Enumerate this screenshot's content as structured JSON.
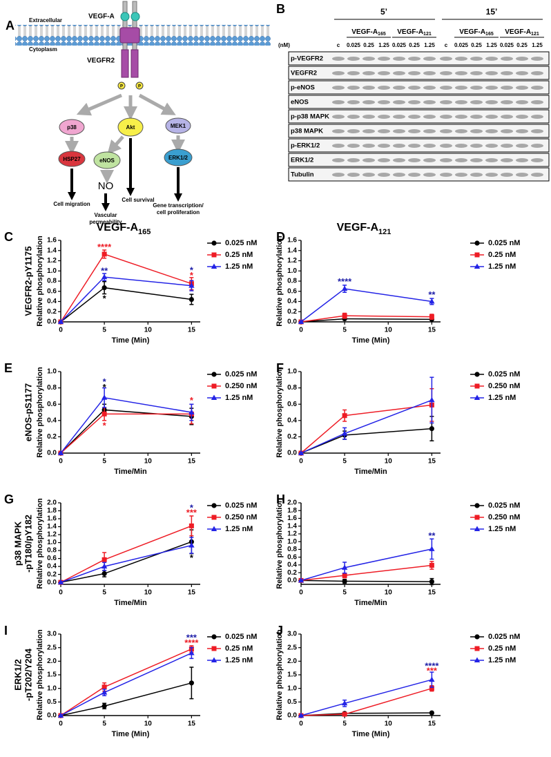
{
  "diagram": {
    "label": "A",
    "ligand": "VEGF-A",
    "extracellular": "Extracellular",
    "cytoplasm": "Cytoplasm",
    "receptor": "VEGFR2",
    "phospho": "P",
    "nodes": [
      "p38",
      "Akt",
      "MEK1",
      "HSP27",
      "eNOS",
      "ERK1/2",
      "NO"
    ],
    "outcomes": [
      [
        "Cell migration"
      ],
      [
        "Vascular",
        "permeability"
      ],
      [
        "Cell survival"
      ],
      [
        "Gene transcription/",
        "cell proliferation"
      ]
    ]
  },
  "blot": {
    "label": "B",
    "times": [
      "5’",
      "15’"
    ],
    "unit": "(nM)",
    "control": "c",
    "groups": [
      {
        "name": "VEGF-A",
        "sub": "165"
      },
      {
        "name": "VEGF-A",
        "sub": "121"
      }
    ],
    "doses": [
      "0.025",
      "0.25",
      "1.25"
    ],
    "rows": [
      "p-VEGFR2",
      "VEGFR2",
      "p-eNOS",
      "eNOS",
      "p-p38 MAPK",
      "p38 MAPK",
      "p-ERK1/2",
      "ERK1/2",
      "Tubulin"
    ]
  },
  "chart_data": [
    {
      "type": "line",
      "label": "C",
      "title": "VEGF-A",
      "title_sub": "165",
      "row_label": [
        "VEGFR2-pY1175"
      ],
      "ylabel": "Relative phosphorylation",
      "xlabel": "Time (Min)",
      "x": [
        0,
        5,
        15
      ],
      "xlim": [
        0,
        16
      ],
      "xticks": [
        0,
        5,
        10,
        15
      ],
      "ylim": [
        0,
        1.6
      ],
      "yticks": [
        {
          "value": 0,
          "label": "0.0"
        },
        0.2,
        0.4,
        0.6,
        0.8,
        {
          "value": 1,
          "label": "1.0"
        },
        1.2,
        1.4,
        1.6
      ],
      "series": [
        {
          "name": "0.025 nM",
          "color": "#000000",
          "marker": "circle",
          "values": [
            0,
            0.67,
            0.44
          ],
          "errors": [
            0,
            0.12,
            0.1
          ]
        },
        {
          "name": "0.25 nM",
          "color": "#ee1c25",
          "marker": "square",
          "values": [
            0,
            1.33,
            0.75
          ],
          "errors": [
            0,
            0.08,
            0.12
          ]
        },
        {
          "name": "1.25 nM",
          "color": "#2323e6",
          "marker": "triangle",
          "values": [
            0,
            0.88,
            0.71
          ],
          "errors": [
            0,
            0.07,
            0.1
          ]
        }
      ],
      "annotations": [
        {
          "text": "****",
          "x": 5,
          "y": 1.46,
          "color": "#ee1c25"
        },
        {
          "text": "**",
          "x": 5,
          "y": 0.99,
          "color": "#1f1fa8"
        },
        {
          "text": "*",
          "x": 5,
          "y": 0.45,
          "color": "#000000"
        },
        {
          "text": "*",
          "x": 15,
          "y": 1.0,
          "color": "#1f1fa8"
        },
        {
          "text": "*",
          "x": 15,
          "y": 0.9,
          "color": "#ee1c25"
        }
      ]
    },
    {
      "type": "line",
      "label": "D",
      "title": "VEGF-A",
      "title_sub": "121",
      "ylabel": "Relative phosphorylation",
      "xlabel": "Time (Min)",
      "x": [
        0,
        5,
        15
      ],
      "xlim": [
        0,
        16
      ],
      "xticks": [
        0,
        5,
        10,
        15
      ],
      "ylim": [
        0,
        1.6
      ],
      "yticks": [
        {
          "value": 0,
          "label": "0.0"
        },
        0.2,
        0.4,
        0.6,
        0.8,
        {
          "value": 1,
          "label": "1.0"
        },
        1.2,
        1.4,
        1.6
      ],
      "series": [
        {
          "name": "0.025 nM",
          "color": "#000000",
          "marker": "circle",
          "values": [
            0,
            0.06,
            0.05
          ],
          "errors": [
            0,
            0.02,
            0.02
          ]
        },
        {
          "name": "0.25 nM",
          "color": "#ee1c25",
          "marker": "square",
          "values": [
            0,
            0.12,
            0.1
          ],
          "errors": [
            0,
            0.05,
            0.05
          ]
        },
        {
          "name": "1.25 nM",
          "color": "#2323e6",
          "marker": "triangle",
          "values": [
            0,
            0.65,
            0.4
          ],
          "errors": [
            0,
            0.07,
            0.06
          ]
        }
      ],
      "annotations": [
        {
          "text": "****",
          "x": 5,
          "y": 0.78,
          "color": "#1f1fa8"
        },
        {
          "text": "**",
          "x": 15,
          "y": 0.52,
          "color": "#1f1fa8"
        }
      ]
    },
    {
      "type": "line",
      "label": "E",
      "row_label": [
        "eNOS-pS1177"
      ],
      "ylabel": "Relative phosphorylation",
      "xlabel": "Time/Min",
      "x": [
        0,
        5,
        15
      ],
      "xlim": [
        0,
        16
      ],
      "xticks": [
        0,
        5,
        10,
        15
      ],
      "ylim": [
        0,
        1
      ],
      "yticks": [
        {
          "value": 0,
          "label": "0.0"
        },
        0.2,
        0.4,
        0.6,
        0.8,
        {
          "value": 1,
          "label": "1.0"
        }
      ],
      "series": [
        {
          "name": "0.025 nM",
          "color": "#000000",
          "marker": "circle",
          "values": [
            0,
            0.53,
            0.45
          ],
          "errors": [
            0,
            0.07,
            0.1
          ]
        },
        {
          "name": "0.250 nM",
          "color": "#ee1c25",
          "marker": "square",
          "values": [
            0,
            0.48,
            0.48
          ],
          "errors": [
            0,
            0.08,
            0.12
          ]
        },
        {
          "name": "1.25 nM",
          "color": "#2323e6",
          "marker": "triangle",
          "values": [
            0,
            0.68,
            0.5
          ],
          "errors": [
            0,
            0.12,
            0.1
          ]
        }
      ],
      "annotations": [
        {
          "text": "*",
          "x": 5,
          "y": 0.87,
          "color": "#1f1fa8"
        },
        {
          "text": "*",
          "x": 5,
          "y": 0.8,
          "color": "#000000"
        },
        {
          "text": "*",
          "x": 5,
          "y": 0.33,
          "color": "#ee1c25"
        },
        {
          "text": "*",
          "x": 15,
          "y": 0.64,
          "color": "#ee1c25"
        }
      ]
    },
    {
      "type": "line",
      "label": "F",
      "ylabel": "Relative phosphorylation",
      "xlabel": "Time/Min",
      "x": [
        0,
        5,
        15
      ],
      "xlim": [
        0,
        16
      ],
      "xticks": [
        0,
        5,
        10,
        15
      ],
      "ylim": [
        0,
        1
      ],
      "yticks": [
        {
          "value": 0,
          "label": "0.0"
        },
        0.2,
        0.4,
        0.6,
        0.8,
        {
          "value": 1,
          "label": "1.0"
        }
      ],
      "series": [
        {
          "name": "0.025 nM",
          "color": "#000000",
          "marker": "circle",
          "values": [
            0,
            0.22,
            0.3
          ],
          "errors": [
            0,
            0.05,
            0.15
          ]
        },
        {
          "name": "0.250 nM",
          "color": "#ee1c25",
          "marker": "square",
          "values": [
            0,
            0.46,
            0.59
          ],
          "errors": [
            0,
            0.07,
            0.2
          ]
        },
        {
          "name": "1.25 nM",
          "color": "#2323e6",
          "marker": "triangle",
          "values": [
            0,
            0.24,
            0.65
          ],
          "errors": [
            0,
            0.07,
            0.28
          ]
        }
      ]
    },
    {
      "type": "line",
      "label": "G",
      "row_label": [
        "p38 MAPK",
        "-pT180/pY182"
      ],
      "ylabel": "Relative phosphorylation",
      "xlabel": "Time/Min",
      "x": [
        0,
        5,
        15
      ],
      "xlim": [
        0,
        16
      ],
      "xticks": [
        0,
        5,
        10,
        15
      ],
      "ylim": [
        -0.05,
        2
      ],
      "yticks": [
        {
          "value": 0,
          "label": "0.0"
        },
        0.2,
        0.4,
        0.6,
        0.8,
        {
          "value": 1,
          "label": "1.0"
        },
        1.2,
        1.4,
        1.6,
        1.8,
        {
          "value": 2,
          "label": "2.0"
        }
      ],
      "series": [
        {
          "name": "0.025 nM",
          "color": "#000000",
          "marker": "circle",
          "values": [
            0,
            0.22,
            1.02
          ],
          "errors": [
            0,
            0.08,
            0.3
          ]
        },
        {
          "name": "0.250 nM",
          "color": "#ee1c25",
          "marker": "square",
          "values": [
            0,
            0.57,
            1.42
          ],
          "errors": [
            0,
            0.18,
            0.25
          ]
        },
        {
          "name": "1.25 nM",
          "color": "#2323e6",
          "marker": "triangle",
          "values": [
            0,
            0.4,
            0.93
          ],
          "errors": [
            0,
            0.1,
            0.2
          ]
        }
      ],
      "annotations": [
        {
          "text": "*",
          "x": 15,
          "y": 1.86,
          "color": "#1f1fa8"
        },
        {
          "text": "***",
          "x": 15,
          "y": 1.74,
          "color": "#ee1c25"
        },
        {
          "text": "*",
          "x": 15,
          "y": 0.6,
          "color": "#000000"
        }
      ]
    },
    {
      "type": "line",
      "label": "H",
      "ylabel": "Relative phosphorylation",
      "xlabel": "Time/Min",
      "x": [
        0,
        5,
        15
      ],
      "xlim": [
        0,
        16
      ],
      "xticks": [
        0,
        5,
        10,
        15
      ],
      "ylim": [
        -0.1,
        2
      ],
      "yticks": [
        {
          "value": 0,
          "label": "0.0"
        },
        0.2,
        0.4,
        0.6,
        0.8,
        {
          "value": 1,
          "label": "1.0"
        },
        1.2,
        1.4,
        1.6,
        1.8,
        {
          "value": 2,
          "label": "2.0"
        }
      ],
      "series": [
        {
          "name": "0.025 nM",
          "color": "#000000",
          "marker": "circle",
          "values": [
            0,
            -0.02,
            -0.03
          ],
          "errors": [
            0,
            0.05,
            0.08
          ]
        },
        {
          "name": "0.250 nM",
          "color": "#ee1c25",
          "marker": "square",
          "values": [
            0,
            0.13,
            0.39
          ],
          "errors": [
            0,
            0.06,
            0.1
          ]
        },
        {
          "name": "1.25 nM",
          "color": "#2323e6",
          "marker": "triangle",
          "values": [
            0,
            0.33,
            0.81
          ],
          "errors": [
            0,
            0.14,
            0.26
          ]
        }
      ],
      "annotations": [
        {
          "text": "**",
          "x": 15,
          "y": 1.14,
          "color": "#1f1fa8"
        }
      ]
    },
    {
      "type": "line",
      "label": "I",
      "row_label": [
        "ERK1/2",
        "-pT202/Y204"
      ],
      "ylabel": "Relative phosphorylation",
      "xlabel": "Time (Min)",
      "x": [
        0,
        5,
        15
      ],
      "xlim": [
        0,
        16
      ],
      "xticks": [
        0,
        5,
        10,
        15
      ],
      "ylim": [
        0,
        3
      ],
      "yticks": [
        {
          "value": 0,
          "label": "0.0"
        },
        0.5,
        {
          "value": 1,
          "label": "1.0"
        },
        1.5,
        {
          "value": 2,
          "label": "2.0"
        },
        2.5,
        {
          "value": 3,
          "label": "3.0"
        }
      ],
      "series": [
        {
          "name": "0.025 nM",
          "color": "#000000",
          "marker": "circle",
          "values": [
            0,
            0.35,
            1.2
          ],
          "errors": [
            0,
            0.1,
            0.58
          ]
        },
        {
          "name": "0.25 nM",
          "color": "#ee1c25",
          "marker": "square",
          "values": [
            0,
            1.05,
            2.45
          ],
          "errors": [
            0,
            0.15,
            0.12
          ]
        },
        {
          "name": "1.25 nM",
          "color": "#2323e6",
          "marker": "triangle",
          "values": [
            0,
            0.85,
            2.3
          ],
          "errors": [
            0,
            0.12,
            0.2
          ]
        }
      ],
      "annotations": [
        {
          "text": "***",
          "x": 15,
          "y": 2.84,
          "color": "#1f1fa8"
        },
        {
          "text": "****",
          "x": 15,
          "y": 2.65,
          "color": "#ee1c25"
        }
      ]
    },
    {
      "type": "line",
      "label": "J",
      "ylabel": "Relative phosphorylation",
      "xlabel": "Time (Min)",
      "x": [
        0,
        5,
        15
      ],
      "xlim": [
        0,
        16
      ],
      "xticks": [
        0,
        5,
        10,
        15
      ],
      "ylim": [
        0,
        3
      ],
      "yticks": [
        {
          "value": 0,
          "label": "0.0"
        },
        0.5,
        {
          "value": 1,
          "label": "1.0"
        },
        1.5,
        {
          "value": 2,
          "label": "2.0"
        },
        2.5,
        {
          "value": 3,
          "label": "3.0"
        }
      ],
      "series": [
        {
          "name": "0.025 nM",
          "color": "#000000",
          "marker": "circle",
          "values": [
            0,
            0.08,
            0.1
          ],
          "errors": [
            0,
            0.02,
            0.02
          ]
        },
        {
          "name": "0.25 nM",
          "color": "#ee1c25",
          "marker": "square",
          "values": [
            0,
            0.05,
            1.0
          ],
          "errors": [
            0,
            0.02,
            0.1
          ]
        },
        {
          "name": "1.25 nM",
          "color": "#2323e6",
          "marker": "triangle",
          "values": [
            0,
            0.45,
            1.32
          ],
          "errors": [
            0,
            0.12,
            0.28
          ]
        }
      ],
      "annotations": [
        {
          "text": "****",
          "x": 15,
          "y": 1.8,
          "color": "#1f1fa8"
        },
        {
          "text": "***",
          "x": 15,
          "y": 1.62,
          "color": "#ee1c25"
        }
      ]
    }
  ]
}
